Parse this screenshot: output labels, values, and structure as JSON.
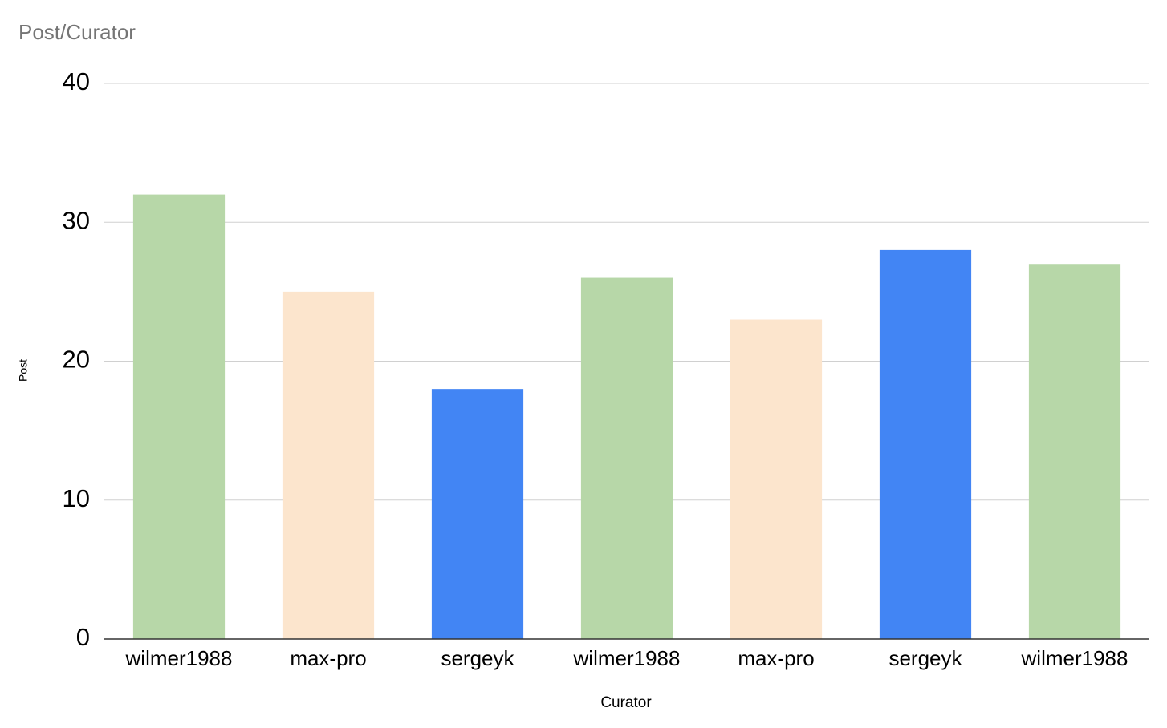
{
  "chart_data": {
    "type": "bar",
    "title": "Post/Curator",
    "x_label": "Curator",
    "y_label": "Post",
    "categories": [
      "wilmer1988",
      "max-pro",
      "sergeyk",
      "wilmer1988",
      "max-pro",
      "sergeyk",
      "wilmer1988"
    ],
    "values": [
      32,
      25,
      18,
      26,
      23,
      28,
      27
    ],
    "colors": [
      "#b7d7a8",
      "#fce5cd",
      "#4285f4",
      "#b7d7a8",
      "#fce5cd",
      "#4285f4",
      "#b7d7a8"
    ],
    "ylim": [
      0,
      40
    ],
    "yticks": [
      0,
      10,
      20,
      30,
      40
    ],
    "grid": true
  }
}
